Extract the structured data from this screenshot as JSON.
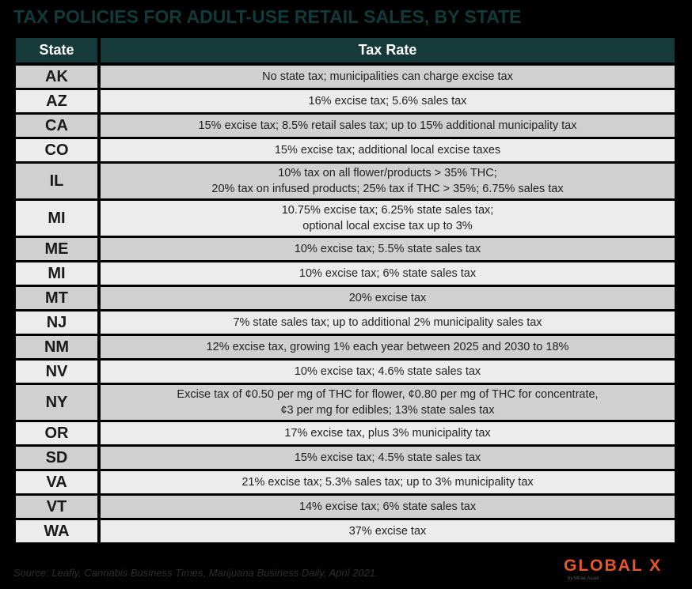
{
  "title": "TAX POLICIES FOR ADULT-USE RETAIL SALES, BY STATE",
  "table": {
    "headers": [
      "State",
      "Tax Rate"
    ],
    "rows": [
      {
        "state": "AK",
        "lines": [
          "No state tax; municipalities can charge excise tax"
        ]
      },
      {
        "state": "AZ",
        "lines": [
          "16% excise tax; 5.6% sales tax"
        ]
      },
      {
        "state": "CA",
        "lines": [
          "15% excise tax; 8.5% retail sales tax; up to 15% additional municipality tax"
        ]
      },
      {
        "state": "CO",
        "lines": [
          "15% excise tax; additional local excise taxes"
        ]
      },
      {
        "state": "IL",
        "lines": [
          "10% tax on all flower/products > 35% THC;",
          "20% tax on infused products; 25% tax if THC > 35%; 6.75% sales tax"
        ]
      },
      {
        "state": "MI",
        "lines": [
          "10.75% excise tax; 6.25% state sales tax;",
          "optional local excise tax up to 3%"
        ]
      },
      {
        "state": "ME",
        "lines": [
          "10% excise tax; 5.5% state sales tax"
        ]
      },
      {
        "state": "MI",
        "lines": [
          "10% excise tax; 6% state sales tax"
        ]
      },
      {
        "state": "MT",
        "lines": [
          "20% excise tax"
        ]
      },
      {
        "state": "NJ",
        "lines": [
          "7% state sales tax; up to additional 2% municipality sales tax"
        ]
      },
      {
        "state": "NM",
        "lines": [
          "12% excise tax, growing 1% each year between 2025 and 2030 to 18%"
        ]
      },
      {
        "state": "NV",
        "lines": [
          "10% excise tax; 4.6% state sales tax"
        ]
      },
      {
        "state": "NY",
        "lines": [
          "Excise tax of ¢0.50 per mg of THC for flower, ¢0.80 per mg of THC for concentrate,",
          "¢3 per mg for edibles; 13% state sales tax"
        ]
      },
      {
        "state": "OR",
        "lines": [
          "17% excise tax, plus 3% municipality tax"
        ]
      },
      {
        "state": "SD",
        "lines": [
          "15% excise tax; 4.5% state sales tax"
        ]
      },
      {
        "state": "VA",
        "lines": [
          "21% excise tax; 5.3% sales tax; up to 3% municipality tax"
        ]
      },
      {
        "state": "VT",
        "lines": [
          "14% excise tax; 6% state sales tax"
        ]
      },
      {
        "state": "WA",
        "lines": [
          "37% excise tax"
        ]
      }
    ]
  },
  "source": "Source: Leafly, Cannabis Business Times, Marijuana Business Daily, April 2021.",
  "logo": {
    "text": "GLOBAL X",
    "sub": "by Mirae Asset"
  },
  "colors": {
    "title": "#113a3a",
    "header_bg": "#163a3a",
    "row_dark": "#d0d0d0",
    "row_light": "#ececec",
    "logo": "#e8562a"
  }
}
